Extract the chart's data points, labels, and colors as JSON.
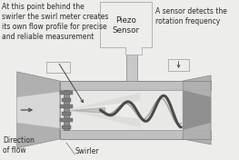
{
  "bg_color": "#ededeb",
  "pipe_wall_color": "#c0c0c0",
  "pipe_inner_color": "#e8e8e6",
  "pipe_dark_color": "#909090",
  "flange_color": "#b8b8b8",
  "flow_light": "#e0e0de",
  "flow_dark": "#888888",
  "swirl_color": "#606060",
  "sensor_dark": "#2a2a2a",
  "sensor_mid": "#555555",
  "outline_color": "#888888",
  "text_color": "#2a2a2a",
  "annotation_left": "At this point behind the\nswirler the swirl meter creates\nits own flow profile for precise\nand reliable measurement",
  "annotation_right": "A sensor detects the\nrotation frequency",
  "label_piezo": "Piezo\nSensor",
  "label_direction": "Direction\nof flow",
  "label_swirler": "Swirler",
  "label_fontsize": 5.8
}
